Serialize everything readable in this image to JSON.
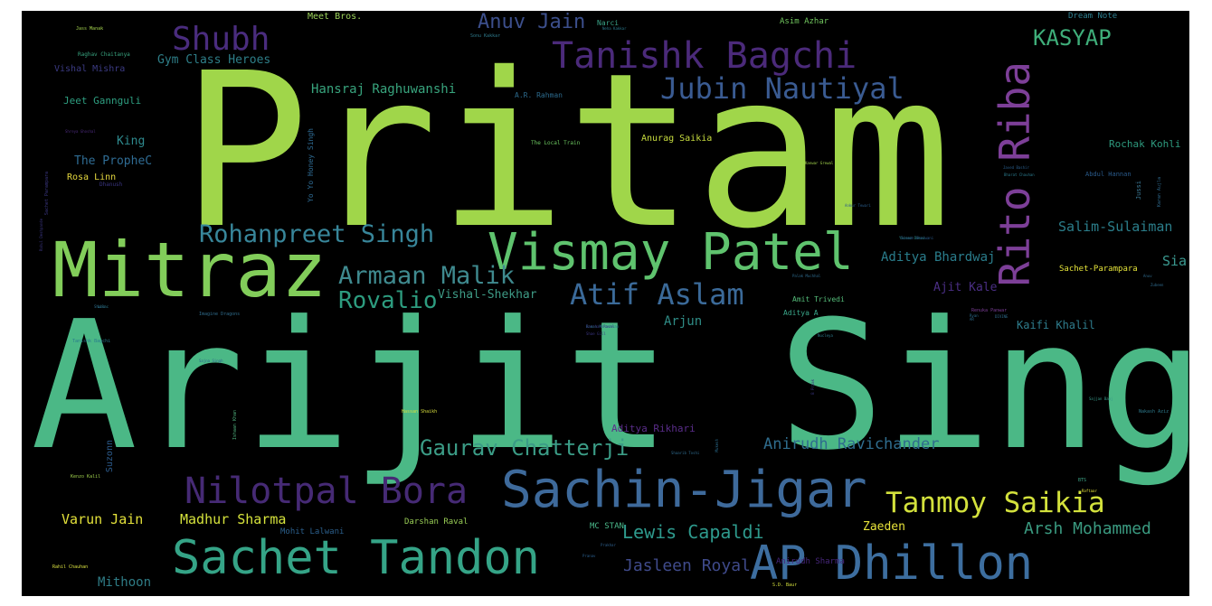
{
  "words": [
    {
      "text": "Pritam",
      "color": "#a0d64a"
    },
    {
      "text": "Arijit Singh",
      "color": "#4bb886"
    },
    {
      "text": "Mitraz",
      "color": "#82cd5a"
    },
    {
      "text": "Vismay Patel",
      "color": "#5fc36e"
    },
    {
      "text": "Rito Riba",
      "color": "#7d3f98"
    },
    {
      "text": "Sachin-Jigar",
      "color": "#3e6a9b"
    },
    {
      "text": "AP Dhillon",
      "color": "#3d6e9f"
    },
    {
      "text": "Sachet Tandon",
      "color": "#35a487"
    },
    {
      "text": "Tanishk Bagchi",
      "color": "#4b2a7a"
    },
    {
      "text": "Shubh",
      "color": "#4a2c7e"
    },
    {
      "text": "Nilotpal Bora",
      "color": "#462a75"
    },
    {
      "text": "Tanmoy Saikia",
      "color": "#d3e13c"
    },
    {
      "text": "Jubin Nautiyal",
      "color": "#3a5b92"
    },
    {
      "text": "Atif Aslam",
      "color": "#3b6a99"
    },
    {
      "text": "Rohanpreet Singh",
      "color": "#38869a"
    },
    {
      "text": "Armaan Malik",
      "color": "#3f8a8f"
    },
    {
      "text": "Rovalio",
      "color": "#2d9c7f"
    },
    {
      "text": "Gaurav Chatterji",
      "color": "#3b9c86"
    },
    {
      "text": "Anirudh Ravichander",
      "color": "#2f6d8e"
    },
    {
      "text": "KASYAP",
      "color": "#3fae7a"
    },
    {
      "text": "Anuv Jain",
      "color": "#3c4f8c"
    },
    {
      "text": "Lewis Capaldi",
      "color": "#2e9a8d"
    },
    {
      "text": "Arsh Mohammed",
      "color": "#3a9a80"
    },
    {
      "text": "Jasleen Royal",
      "color": "#3f4a8a"
    },
    {
      "text": "Madhur Sharma",
      "color": "#d6e33c"
    },
    {
      "text": "Varun Jain",
      "color": "#e3e13a"
    },
    {
      "text": "Salim-Sulaiman",
      "color": "#2b7e8b"
    },
    {
      "text": "Aditya Bhardwaj",
      "color": "#2a7d8c"
    },
    {
      "text": "Hansraj Raghuwanshi",
      "color": "#38a47d"
    },
    {
      "text": "Vishal-Shekhar",
      "color": "#3e9b86"
    },
    {
      "text": "Mithoon",
      "color": "#2f7c86"
    },
    {
      "text": "Sia",
      "color": "#3a9990"
    },
    {
      "text": "Arjun",
      "color": "#2f8c86"
    },
    {
      "text": "Ajit Kale",
      "color": "#4a2e84"
    },
    {
      "text": "Kaifi Khalil",
      "color": "#2e7c8c"
    },
    {
      "text": "Gym Class Heroes",
      "color": "#2e7e88"
    },
    {
      "text": "King",
      "color": "#2e8a8e"
    },
    {
      "text": "The PropheC",
      "color": "#2f6c94"
    },
    {
      "text": "Jeet Gannguli",
      "color": "#2e9e80"
    },
    {
      "text": "Rochak Kohli",
      "color": "#2e9a7e"
    },
    {
      "text": "Aditya Rikhari",
      "color": "#5a2d8a"
    },
    {
      "text": "Zaeden",
      "color": "#e6e23a"
    },
    {
      "text": "Meet Bros.",
      "color": "#9bd15a"
    },
    {
      "text": "Asim Azhar",
      "color": "#72c75f"
    },
    {
      "text": "Dream Note",
      "color": "#2e7f90"
    },
    {
      "text": "Vishal Mishra",
      "color": "#3b3a82"
    },
    {
      "text": "Rosa Linn",
      "color": "#e3d63e"
    },
    {
      "text": "Anurag Saikia",
      "color": "#c8dd3f"
    },
    {
      "text": "Sachet-Parampara",
      "color": "#e5e43a"
    },
    {
      "text": "Darshan Raval",
      "color": "#98cc55"
    },
    {
      "text": "MC STAN",
      "color": "#4ab98a"
    },
    {
      "text": "Mohit Lalwani",
      "color": "#2b5f8c"
    },
    {
      "text": "Anirudh Sharma",
      "color": "#46267a"
    },
    {
      "text": "Amit Trivedi",
      "color": "#55bd7a"
    },
    {
      "text": "Aditya A",
      "color": "#3aa78a"
    },
    {
      "text": "Yo Yo Honey Singh",
      "color": "#2f6d96"
    },
    {
      "text": "A.R. Rahman",
      "color": "#2c6a8c"
    },
    {
      "text": "Narci",
      "color": "#3aa286"
    },
    {
      "text": "The Local Train",
      "color": "#6cc760"
    },
    {
      "text": "Raghav Chaitanya",
      "color": "#38a37f"
    },
    {
      "text": "Jass Manak",
      "color": "#a5d44e"
    },
    {
      "text": "Sonu Kakkar",
      "color": "#2f7c8e"
    },
    {
      "text": "Suzonn",
      "color": "#2c5b8c"
    },
    {
      "text": "Abdul Hannan",
      "color": "#2a5b8c"
    },
    {
      "text": "Jussi",
      "color": "#3d7d9a"
    },
    {
      "text": "Karan Aujla",
      "color": "#2f6a8e"
    },
    {
      "text": "Javed Bashir",
      "color": "#2a5f8e"
    },
    {
      "text": "Dhanush",
      "color": "#3a3580"
    },
    {
      "text": "Sachet Parampara",
      "color": "#3a3680"
    },
    {
      "text": "Shreya Ghoshal",
      "color": "#4a2a7a"
    },
    {
      "text": "Imagine Dragons",
      "color": "#2f6c8c"
    },
    {
      "text": "Tanishk Bagchi",
      "color": "#2a7c8e"
    },
    {
      "text": "Palak Muchhal",
      "color": "#2e6a8c"
    },
    {
      "text": "Renuka Panwar",
      "color": "#7b3d96"
    },
    {
      "text": "Yaseer Desai",
      "color": "#2c8a8a"
    },
    {
      "text": "Hassan Shaikh",
      "color": "#d8df3e"
    },
    {
      "text": "Ishaan Khan",
      "color": "#4fb27e"
    },
    {
      "text": "Raman Mahadevan",
      "color": "#2a7a8c"
    },
    {
      "text": "Kanwar Grewal",
      "color": "#a2d34c"
    },
    {
      "text": "Shaan",
      "color": "#2d6c8c"
    },
    {
      "text": "B Praak",
      "color": "#3a3580"
    },
    {
      "text": "Nakash Aziz",
      "color": "#2d7a8c"
    },
    {
      "text": "Rahul Deshpande",
      "color": "#3a3580"
    },
    {
      "text": "Kenzo Kalil",
      "color": "#9fd04c"
    },
    {
      "text": "Sajna Singh",
      "color": "#2f5f8e"
    },
    {
      "text": "Lilac",
      "color": "#2c7a8c"
    },
    {
      "text": "Sajjan Baaj",
      "color": "#3a9a8a"
    },
    {
      "text": "Rahil Chauhan",
      "color": "#d9e040"
    },
    {
      "text": "Prakhar",
      "color": "#2e5f8c"
    },
    {
      "text": "Shaarib Toshi",
      "color": "#2e6a8c"
    },
    {
      "text": "Mukesh",
      "color": "#2a6c8e"
    },
    {
      "text": "Ankur Tewari",
      "color": "#2a5c8a"
    },
    {
      "text": "BTS",
      "color": "#3ea688"
    },
    {
      "text": "Raftaar",
      "color": "#e4e23a"
    },
    {
      "text": "Neha Kakkar",
      "color": "#2a7a8c"
    },
    {
      "text": "Sivaan Sherwani",
      "color": "#2a5b8c"
    },
    {
      "text": "Ryan",
      "color": "#2c6c8c"
    },
    {
      "text": "Darshan Raval",
      "color": "#3a3582"
    },
    {
      "text": "DIVINE",
      "color": "#2f6c8c"
    },
    {
      "text": "Shae Gill",
      "color": "#3a3582"
    },
    {
      "text": "Bharat Chauhan",
      "color": "#2a7a8c"
    },
    {
      "text": "Anuv",
      "color": "#2f6a8c"
    },
    {
      "text": "Nucleya",
      "color": "#2c7c8c"
    },
    {
      "text": "S.D. Baur",
      "color": "#d5e03d"
    },
    {
      "text": "Pranav",
      "color": "#2a5f8e"
    },
    {
      "text": "Zubeen",
      "color": "#2f6a8c"
    },
    {
      "text": "AR",
      "color": "#2e6c8c"
    }
  ]
}
